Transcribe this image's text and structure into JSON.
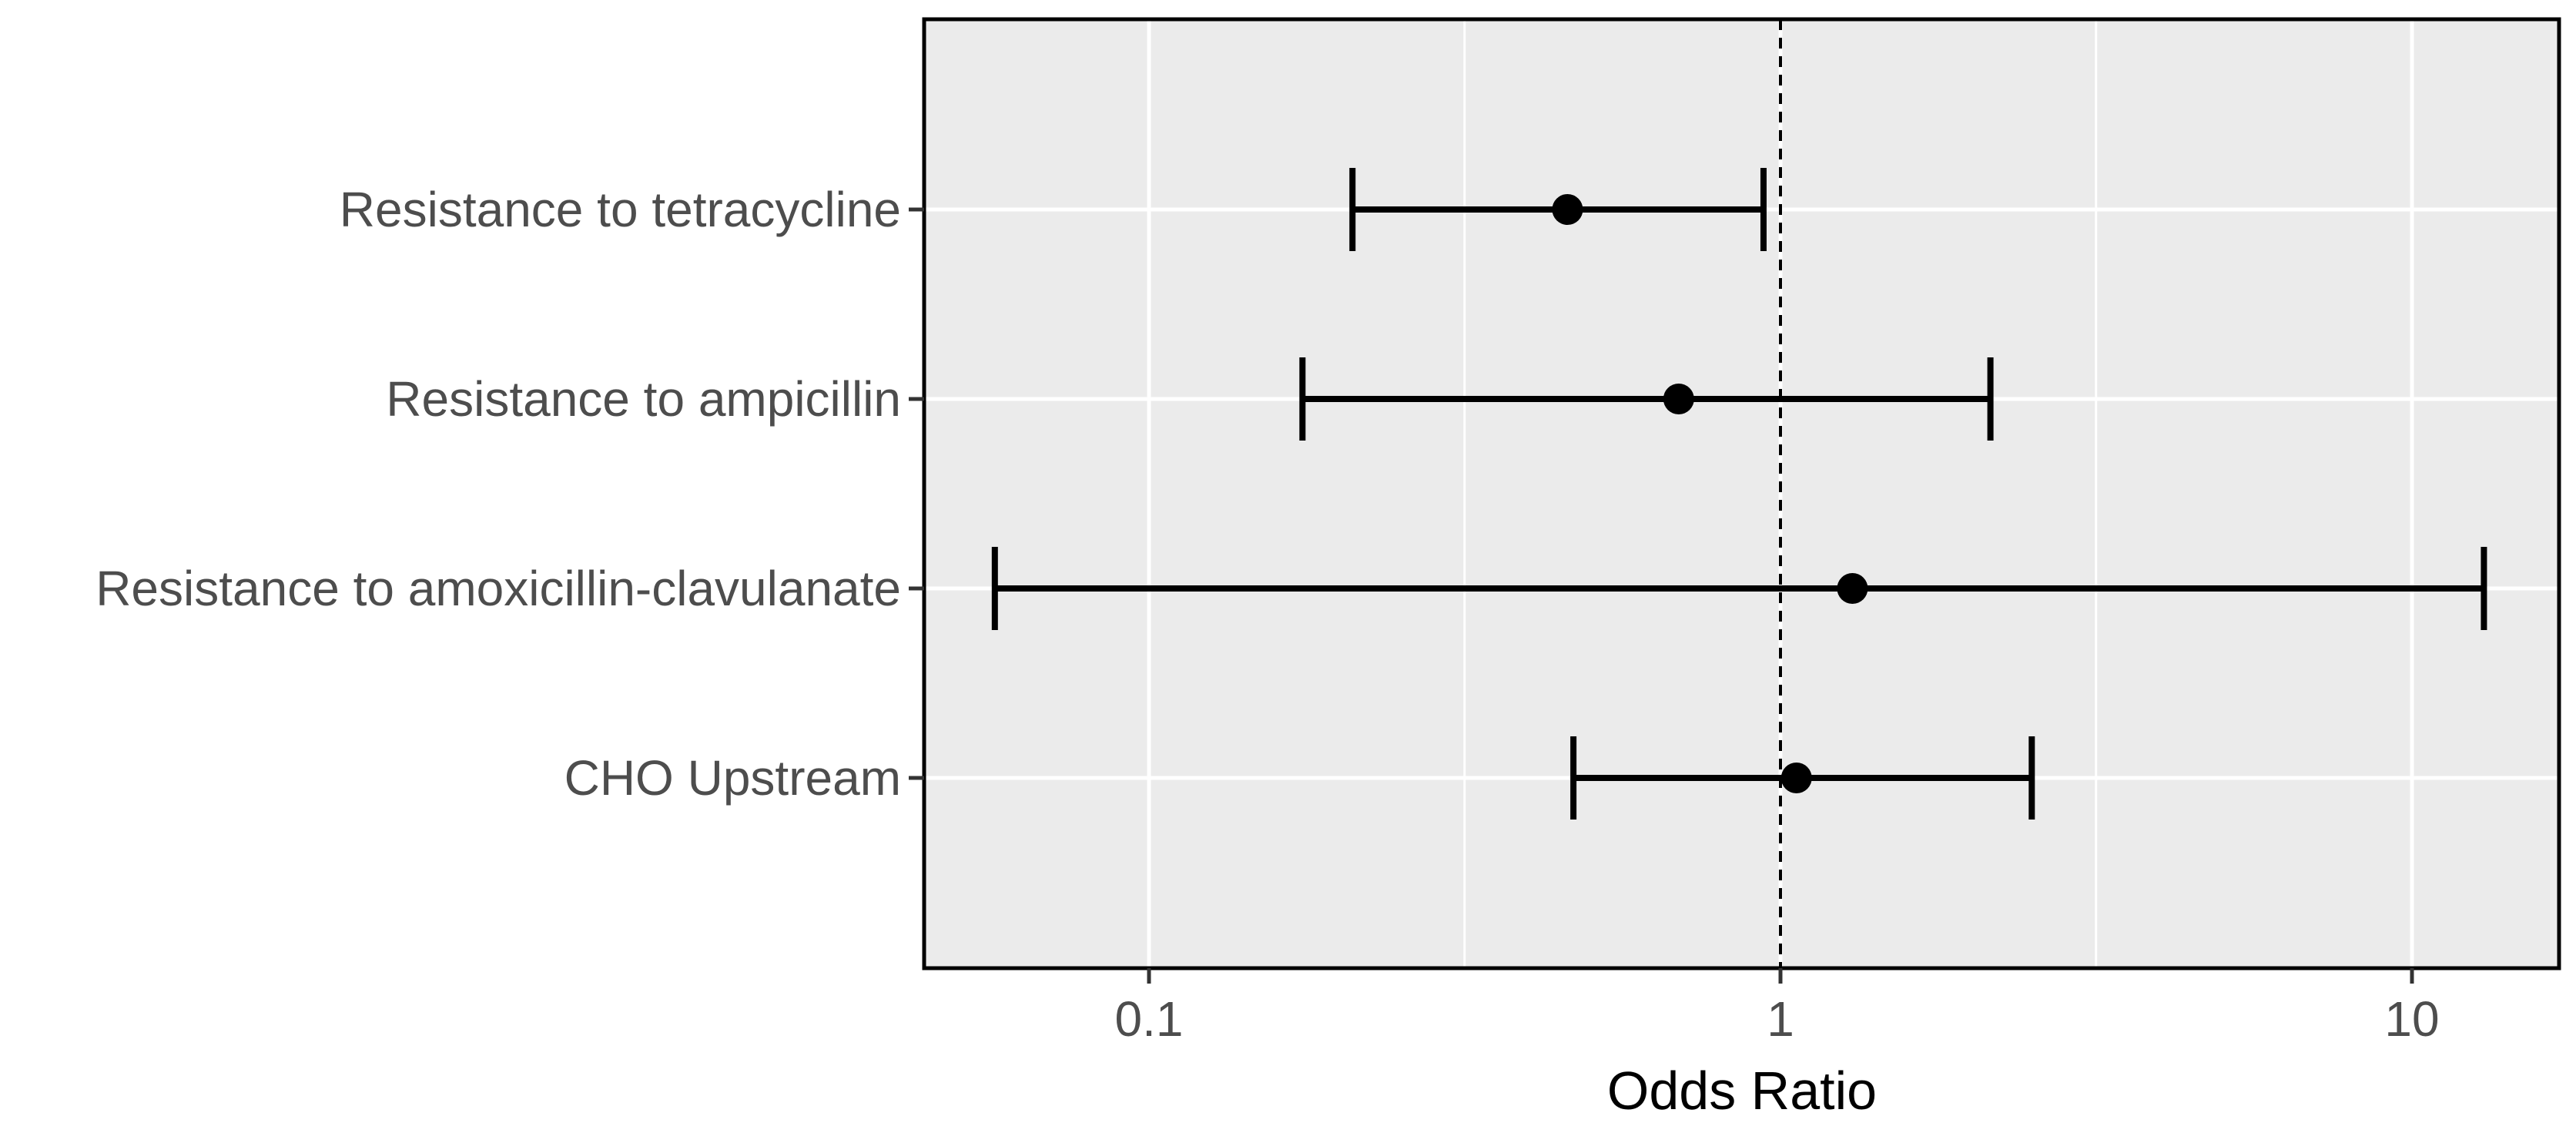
{
  "chart_data": {
    "type": "forest",
    "title": "",
    "xlabel": "Odds Ratio",
    "ylabel": "",
    "x_scale": "log10",
    "xlim": [
      0.045,
      13.9
    ],
    "x_ticks": [
      {
        "value": 0.1,
        "label": "0.1"
      },
      {
        "value": 1,
        "label": "1"
      },
      {
        "value": 10,
        "label": "10"
      }
    ],
    "x_minor_gridlines": [
      0.316,
      3.16
    ],
    "reference_line": 1,
    "grid": true,
    "legend": "none",
    "colors": {
      "panel_background": "#ebebeb",
      "grid": "#ffffff",
      "marks": "#000000",
      "tick_text": "#4d4d4d",
      "axis_title": "#000000"
    },
    "rows": [
      {
        "label": "Resistance to tetracycline",
        "or": 0.46,
        "ci_low": 0.21,
        "ci_high": 0.94
      },
      {
        "label": "Resistance to ampicillin",
        "or": 0.69,
        "ci_low": 0.175,
        "ci_high": 2.15
      },
      {
        "label": "Resistance to amoxicillin-clavulanate",
        "or": 1.3,
        "ci_low": 0.057,
        "ci_high": 13.0
      },
      {
        "label": "CHO Upstream",
        "or": 1.06,
        "ci_low": 0.47,
        "ci_high": 2.5
      }
    ]
  }
}
